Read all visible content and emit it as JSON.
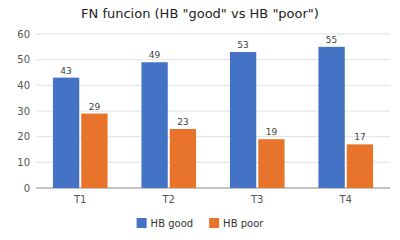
{
  "chart_data": {
    "type": "bar",
    "title": "FN funcion (HB \"good\" vs HB \"poor\")",
    "categories": [
      "T1",
      "T2",
      "T3",
      "T4"
    ],
    "series": [
      {
        "name": "HB good",
        "color": "#4472C4",
        "values": [
          43,
          49,
          53,
          55
        ]
      },
      {
        "name": "HB poor",
        "color": "#E8732A",
        "values": [
          29,
          23,
          19,
          17
        ]
      }
    ],
    "ylim": [
      0,
      60
    ],
    "yticks": [
      0,
      10,
      20,
      30,
      40,
      50,
      60
    ],
    "grid": true,
    "legend": "bottom",
    "data_labels": true
  }
}
